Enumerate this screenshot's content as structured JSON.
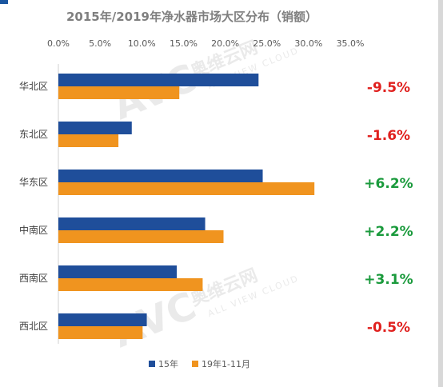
{
  "chart_data": {
    "type": "bar",
    "orientation": "horizontal",
    "title": "2015年/2019年净水器市场大区分布（销额）",
    "categories": [
      "华北区",
      "东北区",
      "华东区",
      "中南区",
      "西南区",
      "西北区"
    ],
    "xlim": [
      0,
      35
    ],
    "x_ticks": [
      "0.0%",
      "5.0%",
      "10.0%",
      "15.0%",
      "20.0%",
      "25.0%",
      "30.0%",
      "35.0%"
    ],
    "series": [
      {
        "name": "15年",
        "color": "#1f4e9a",
        "values": [
          24.0,
          8.8,
          24.5,
          17.6,
          14.2,
          10.6
        ]
      },
      {
        "name": "19年1-11月",
        "color": "#f0941f",
        "values": [
          14.5,
          7.2,
          30.7,
          19.8,
          17.3,
          10.1
        ]
      }
    ],
    "changes": [
      "-9.5%",
      "-1.6%",
      "+6.2%",
      "+2.2%",
      "+3.1%",
      "-0.5%"
    ],
    "change_colors": {
      "negative": "#e0201e",
      "positive": "#1a9a3c"
    },
    "legend_position": "bottom",
    "grid": false
  },
  "watermark": {
    "brand": "AVC",
    "name": "奥维云网",
    "sub": "ALL VIEW CLOUD"
  }
}
